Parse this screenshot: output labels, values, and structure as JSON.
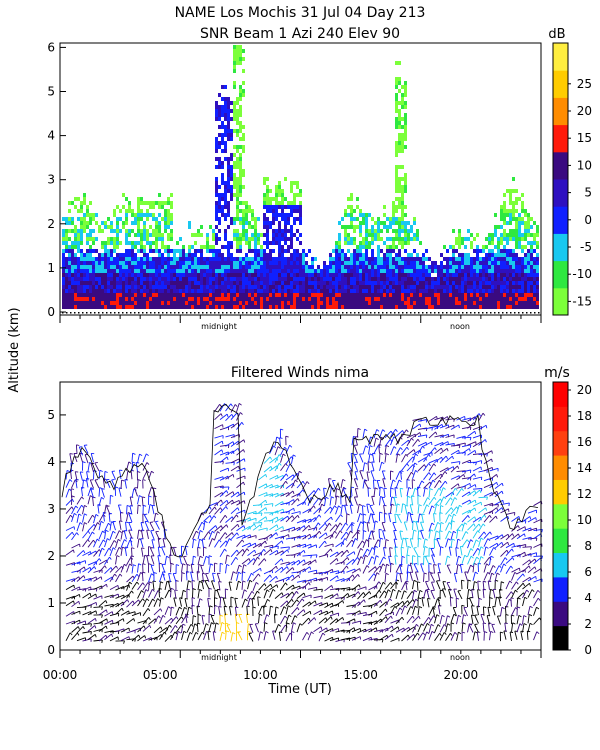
{
  "figure": {
    "title_line1": "NAME Los Mochis    31 Jul 04 Day 213",
    "title_line2": "SNR Beam 1 Azi 240 Elev 90",
    "ylabel": "Altitude (km)",
    "xlabel": "Time (UT)",
    "midnight_label": "midnight",
    "noon_label": "noon"
  },
  "chart_data": [
    {
      "type": "heatmap",
      "title": "SNR Beam 1 Azi 240 Elev 90",
      "ylim": [
        0,
        6.1
      ],
      "y_ticks": [
        "0",
        "1",
        "2",
        "3",
        "4",
        "5",
        "6"
      ],
      "colorbar": {
        "unit": "dB",
        "ticks": [
          "-15",
          "-10",
          "-5",
          "0",
          "5",
          "10",
          "15",
          "20",
          "25"
        ],
        "colors": [
          "#7cff3a",
          "#2ee840",
          "#18c8f0",
          "#1020ff",
          "#2e10c0",
          "#3a0a80",
          "#ff1a0a",
          "#ff8c00",
          "#ffcc00",
          "#ffee40"
        ]
      }
    },
    {
      "type": "scatter",
      "title": "Filtered Winds nima",
      "ylim": [
        0,
        5.7
      ],
      "y_ticks": [
        "0",
        "1",
        "2",
        "3",
        "4",
        "5"
      ],
      "xlim": [
        0,
        24
      ],
      "x_ticks": [
        "00:00",
        "05:00",
        "10:00",
        "15:00",
        "20:00"
      ],
      "colorbar": {
        "unit": "m/s",
        "ticks": [
          "0",
          "2",
          "4",
          "6",
          "8",
          "10",
          "12",
          "14",
          "16",
          "18",
          "20"
        ],
        "colors": [
          "#000000",
          "#3a0a80",
          "#1020ff",
          "#18c8f0",
          "#2ee840",
          "#7cff3a",
          "#ffcc00",
          "#ff8c00",
          "#ff4010",
          "#ff1a0a",
          "#ff0000"
        ]
      }
    }
  ]
}
